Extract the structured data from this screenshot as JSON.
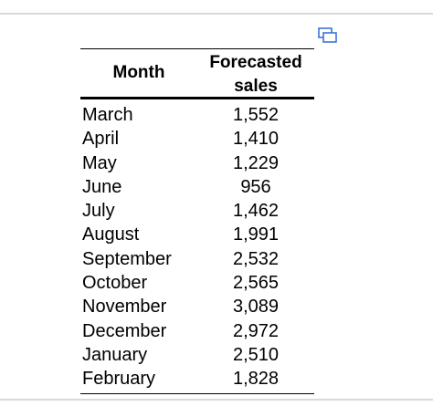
{
  "table": {
    "headers": {
      "month": "Month",
      "sales": "Forecasted\nsales"
    },
    "rows": [
      {
        "month": "March",
        "sales": "1,552"
      },
      {
        "month": "April",
        "sales": "1,410"
      },
      {
        "month": "May",
        "sales": "1,229"
      },
      {
        "month": "June",
        "sales": "956"
      },
      {
        "month": "July",
        "sales": "1,462"
      },
      {
        "month": "August",
        "sales": "1,991"
      },
      {
        "month": "September",
        "sales": "2,532"
      },
      {
        "month": "October",
        "sales": "2,565"
      },
      {
        "month": "November",
        "sales": "3,089"
      },
      {
        "month": "December",
        "sales": "2,972"
      },
      {
        "month": "January",
        "sales": "2,510"
      },
      {
        "month": "February",
        "sales": "1,828"
      }
    ]
  },
  "icons": {
    "copy": "copy-icon"
  },
  "colors": {
    "icon": "#3b73d9",
    "rule": "#d9d9d9"
  }
}
